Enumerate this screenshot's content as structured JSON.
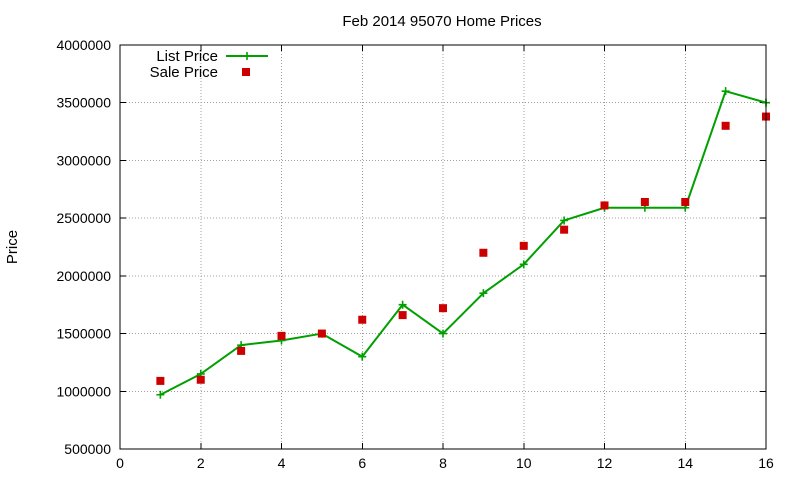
{
  "chart_data": {
    "type": "line",
    "title": "Feb 2014 95070 Home Prices",
    "xlabel": "",
    "ylabel": "Price",
    "xlim": [
      0,
      16
    ],
    "ylim": [
      500000,
      4000000
    ],
    "xticks": [
      0,
      2,
      4,
      6,
      8,
      10,
      12,
      14,
      16
    ],
    "yticks": [
      500000,
      1000000,
      1500000,
      2000000,
      2500000,
      3000000,
      3500000,
      4000000
    ],
    "xtick_labels": [
      "0",
      "2",
      "4",
      "6",
      "8",
      "10",
      "12",
      "14",
      "16"
    ],
    "ytick_labels": [
      "500000",
      "1000000",
      "1500000",
      "2000000",
      "2500000",
      "3000000",
      "3500000",
      "4000000"
    ],
    "grid": true,
    "legend_position": "top-left",
    "series": [
      {
        "name": "List Price",
        "style": "line-plus",
        "color": "#00a000",
        "points": [
          {
            "x": 1,
            "y": 970000
          },
          {
            "x": 2,
            "y": 1150000
          },
          {
            "x": 3,
            "y": 1400000
          },
          {
            "x": 4,
            "y": 1440000
          },
          {
            "x": 5,
            "y": 1500000
          },
          {
            "x": 6,
            "y": 1300000
          },
          {
            "x": 7,
            "y": 1750000
          },
          {
            "x": 8,
            "y": 1500000
          },
          {
            "x": 9,
            "y": 1850000
          },
          {
            "x": 10,
            "y": 2100000
          },
          {
            "x": 11,
            "y": 2480000
          },
          {
            "x": 12,
            "y": 2590000
          },
          {
            "x": 13,
            "y": 2590000
          },
          {
            "x": 14,
            "y": 2590000
          },
          {
            "x": 15,
            "y": 3600000
          },
          {
            "x": 16,
            "y": 3500000
          }
        ]
      },
      {
        "name": "Sale Price",
        "style": "square-marker",
        "color": "#cc0000",
        "points": [
          {
            "x": 1,
            "y": 1090000
          },
          {
            "x": 2,
            "y": 1100000
          },
          {
            "x": 3,
            "y": 1350000
          },
          {
            "x": 4,
            "y": 1480000
          },
          {
            "x": 5,
            "y": 1500000
          },
          {
            "x": 6,
            "y": 1620000
          },
          {
            "x": 7,
            "y": 1660000
          },
          {
            "x": 8,
            "y": 1720000
          },
          {
            "x": 9,
            "y": 2200000
          },
          {
            "x": 10,
            "y": 2260000
          },
          {
            "x": 11,
            "y": 2400000
          },
          {
            "x": 12,
            "y": 2610000
          },
          {
            "x": 13,
            "y": 2640000
          },
          {
            "x": 14,
            "y": 2640000
          },
          {
            "x": 15,
            "y": 3300000
          },
          {
            "x": 16,
            "y": 3380000
          }
        ]
      }
    ]
  }
}
